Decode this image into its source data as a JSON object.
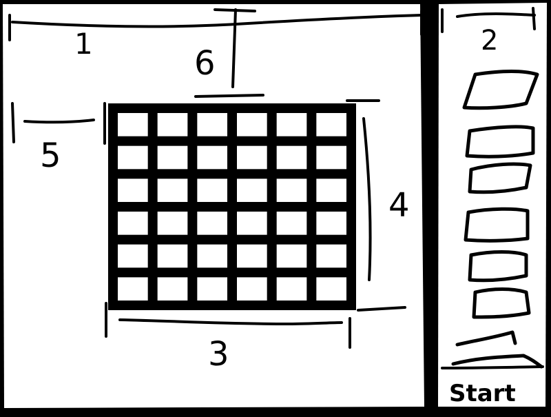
{
  "labels": {
    "dimension_1": "1",
    "dimension_2": "2",
    "dimension_3": "3",
    "dimension_4": "4",
    "dimension_5": "5",
    "dimension_6": "6",
    "start": "Start"
  },
  "grid": {
    "rows": 6,
    "columns": 6
  },
  "sidebar": {
    "item_count": 8
  },
  "colors": {
    "ink": "#000000",
    "paper": "#ffffff"
  }
}
